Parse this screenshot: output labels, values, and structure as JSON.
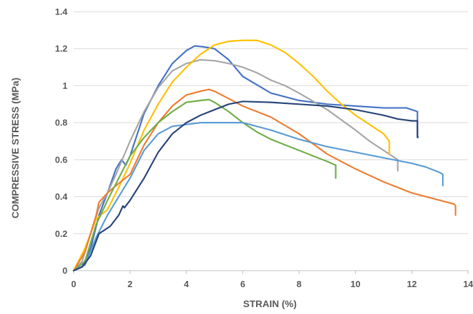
{
  "chart_data": {
    "type": "line",
    "title": "",
    "xlabel": "STRAIN (%)",
    "ylabel": "COMPRESSIVE STRESS (MPa)",
    "xlim": [
      0,
      14
    ],
    "ylim": [
      0,
      1.4
    ],
    "x_ticks": [
      "0",
      "2",
      "4",
      "6",
      "8",
      "10",
      "12",
      "14"
    ],
    "y_ticks": [
      "0",
      "0.2",
      "0.4",
      "0.6",
      "0.8",
      "1",
      "1.2",
      "1.4"
    ],
    "grid": "horizontal",
    "legend": "none",
    "series": [
      {
        "color": "#4472C4",
        "x": [
          0,
          0.3,
          0.6,
          0.9,
          1.2,
          1.5,
          1.7,
          1.85,
          2,
          2.5,
          3,
          3.5,
          4,
          4.3,
          4.6,
          5,
          5.5,
          6,
          7,
          8,
          9,
          10,
          11,
          11.8,
          12.2,
          12.2,
          12.22
        ],
        "y": [
          0,
          0.02,
          0.12,
          0.3,
          0.42,
          0.55,
          0.6,
          0.57,
          0.62,
          0.85,
          1.0,
          1.12,
          1.19,
          1.215,
          1.21,
          1.2,
          1.14,
          1.05,
          0.96,
          0.92,
          0.9,
          0.89,
          0.88,
          0.88,
          0.86,
          0.73,
          0.72
        ]
      },
      {
        "color": "#A5A5A5",
        "x": [
          0,
          0.3,
          0.6,
          0.9,
          1.2,
          1.5,
          2,
          2.5,
          3,
          3.5,
          4,
          4.5,
          5,
          5.5,
          6,
          6.5,
          7,
          7.5,
          8,
          9,
          10,
          10.5,
          11,
          11.5,
          11.5
        ],
        "y": [
          0,
          0.05,
          0.2,
          0.34,
          0.42,
          0.52,
          0.7,
          0.86,
          0.99,
          1.08,
          1.12,
          1.14,
          1.135,
          1.12,
          1.1,
          1.07,
          1.03,
          1.0,
          0.96,
          0.87,
          0.76,
          0.7,
          0.65,
          0.6,
          0.54
        ]
      },
      {
        "color": "#FFC000",
        "x": [
          0,
          0.4,
          0.8,
          1.2,
          1.6,
          2,
          2.5,
          3,
          3.5,
          4,
          4.5,
          5,
          5.5,
          6,
          6.5,
          7,
          7.5,
          8,
          8.5,
          9,
          9.5,
          10,
          10.5,
          11,
          11.2,
          11.2
        ],
        "y": [
          0,
          0.12,
          0.28,
          0.33,
          0.45,
          0.58,
          0.76,
          0.9,
          1.02,
          1.1,
          1.17,
          1.22,
          1.24,
          1.245,
          1.245,
          1.22,
          1.18,
          1.12,
          1.05,
          0.97,
          0.9,
          0.84,
          0.79,
          0.74,
          0.7,
          0.63
        ]
      },
      {
        "color": "#ED7D31",
        "x": [
          0,
          0.4,
          0.8,
          0.9,
          1.2,
          1.5,
          2,
          2.5,
          3,
          3.5,
          4,
          4.5,
          4.8,
          5,
          5.5,
          6,
          7,
          8,
          9,
          10,
          11,
          12,
          13,
          13.5,
          13.55,
          13.55
        ],
        "y": [
          0,
          0.1,
          0.3,
          0.37,
          0.42,
          0.46,
          0.52,
          0.68,
          0.8,
          0.89,
          0.95,
          0.97,
          0.98,
          0.97,
          0.93,
          0.89,
          0.83,
          0.74,
          0.63,
          0.55,
          0.48,
          0.42,
          0.38,
          0.36,
          0.35,
          0.3
        ]
      },
      {
        "color": "#70AD47",
        "x": [
          0,
          0.4,
          0.8,
          1.2,
          1.6,
          2,
          2.5,
          3,
          3.5,
          4,
          4.5,
          4.8,
          5,
          5.5,
          6,
          6.5,
          7,
          7.5,
          8,
          8.5,
          9,
          9.3,
          9.3
        ],
        "y": [
          0,
          0.05,
          0.25,
          0.38,
          0.5,
          0.62,
          0.72,
          0.8,
          0.86,
          0.91,
          0.92,
          0.925,
          0.91,
          0.86,
          0.8,
          0.75,
          0.71,
          0.68,
          0.65,
          0.62,
          0.59,
          0.57,
          0.5
        ]
      },
      {
        "color": "#5B9BD5",
        "x": [
          0,
          0.4,
          0.8,
          1.2,
          1.6,
          2,
          2.5,
          3,
          3.5,
          4,
          4.5,
          5,
          5.5,
          6,
          7,
          8,
          9,
          10,
          11,
          12,
          12.5,
          13,
          13.1,
          13.1
        ],
        "y": [
          0,
          0.03,
          0.18,
          0.3,
          0.4,
          0.5,
          0.65,
          0.74,
          0.78,
          0.79,
          0.8,
          0.8,
          0.8,
          0.8,
          0.76,
          0.71,
          0.67,
          0.64,
          0.61,
          0.58,
          0.56,
          0.53,
          0.52,
          0.46
        ]
      },
      {
        "color": "#264478",
        "x": [
          0,
          0.3,
          0.6,
          0.9,
          1.1,
          1.3,
          1.6,
          1.75,
          1.8,
          2,
          2.5,
          3,
          3.5,
          4,
          4.5,
          5,
          5.5,
          6,
          7,
          8,
          9,
          10,
          11,
          11.5,
          12,
          12.2,
          12.2
        ],
        "y": [
          0,
          0.02,
          0.08,
          0.2,
          0.22,
          0.24,
          0.3,
          0.35,
          0.34,
          0.38,
          0.5,
          0.64,
          0.74,
          0.8,
          0.84,
          0.87,
          0.9,
          0.915,
          0.91,
          0.9,
          0.89,
          0.87,
          0.84,
          0.82,
          0.81,
          0.81,
          0.72
        ]
      }
    ]
  }
}
